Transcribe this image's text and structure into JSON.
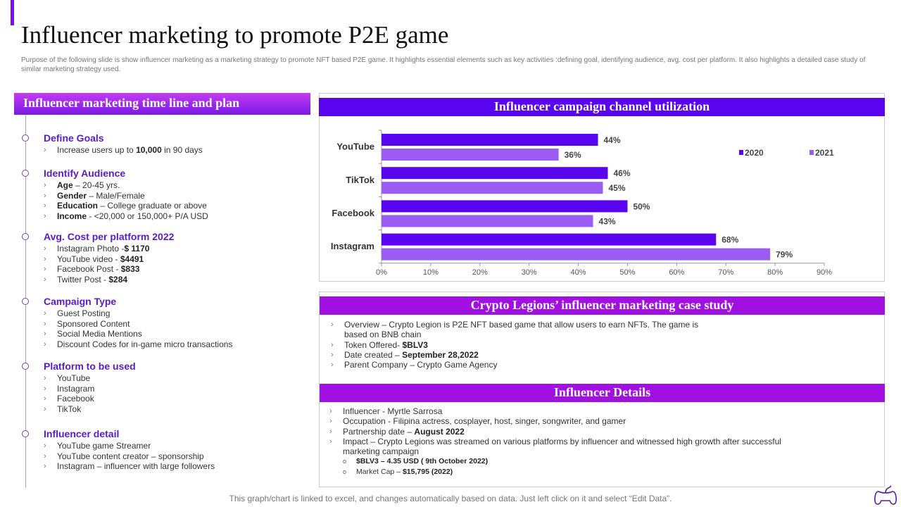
{
  "header": {
    "title": "Influencer marketing to promote P2E game",
    "subtitle": "Purpose of the following slide is show influencer marketing as a marketing strategy to promote NFT based P2E  game.  It highlights essential elements  such as key activities :defining goal,  identifying audience,  avg. cost per platform. It also highlights a detailed  case study of similar marketing strategy used."
  },
  "left": {
    "heading": "Influencer marketing time line and plan",
    "sections": [
      {
        "title": "Define Goals",
        "items": [
          [
            {
              "t": "Increase users up to "
            },
            {
              "t": "10,000",
              "b": true
            },
            {
              "t": " in 90 days"
            }
          ]
        ]
      },
      {
        "title": "Identify Audience",
        "items": [
          [
            {
              "t": "Age",
              "b": true
            },
            {
              "t": " – 20-45 yrs."
            }
          ],
          [
            {
              "t": "Gender",
              "b": true
            },
            {
              "t": " – Male/Female"
            }
          ],
          [
            {
              "t": "Education",
              "b": true
            },
            {
              "t": "  – College graduate or above"
            }
          ],
          [
            {
              "t": "Income",
              "b": true
            },
            {
              "t": " - <20,000 or 150,000+ P/A USD"
            }
          ]
        ]
      },
      {
        "title": "Avg. Cost per platform 2022",
        "items": [
          [
            {
              "t": "Instagram Photo -"
            },
            {
              "t": "$ 1170",
              "b": true
            }
          ],
          [
            {
              "t": "YouTube  video - "
            },
            {
              "t": "$4491",
              "b": true
            }
          ],
          [
            {
              "t": "Facebook Post  -  "
            },
            {
              "t": "$833",
              "b": true
            }
          ],
          [
            {
              "t": "Twitter Post - "
            },
            {
              "t": "$284",
              "b": true
            }
          ]
        ]
      },
      {
        "title": "Campaign Type",
        "items": [
          [
            {
              "t": "Guest Posting"
            }
          ],
          [
            {
              "t": "Sponsored Content"
            }
          ],
          [
            {
              "t": "Social Media Mentions"
            }
          ],
          [
            {
              "t": "Discount Codes for in-game micro transactions"
            }
          ]
        ]
      },
      {
        "title": "Platform to be used",
        "items": [
          [
            {
              "t": "YouTube"
            }
          ],
          [
            {
              "t": "Instagram"
            }
          ],
          [
            {
              "t": "Facebook"
            }
          ],
          [
            {
              "t": "TikTok"
            }
          ]
        ]
      },
      {
        "title": "Influencer detail",
        "items": [
          [
            {
              "t": "YouTube game Streamer"
            }
          ],
          [
            {
              "t": "YouTube content creator – sponsorship"
            }
          ],
          [
            {
              "t": "Instagram – influencer with large followers"
            }
          ]
        ]
      }
    ]
  },
  "chart_heading": "Influencer campaign channel utilization",
  "chart_data": {
    "type": "bar",
    "orientation": "horizontal",
    "categories": [
      "YouTube",
      "TikTok",
      "Facebook",
      "Instagram"
    ],
    "series": [
      {
        "name": "2020",
        "values": [
          44,
          46,
          50,
          68
        ],
        "color": "#5a05f0"
      },
      {
        "name": "2021",
        "values": [
          36,
          45,
          43,
          79
        ],
        "color": "#9b5cf4"
      }
    ],
    "xlim": [
      0,
      90
    ],
    "xticks": [
      "0%",
      "10%",
      "20%",
      "30%",
      "40%",
      "50%",
      "60%",
      "70%",
      "80%",
      "90%"
    ],
    "legend": "top-right",
    "grid": false
  },
  "case_study": {
    "heading": "Crypto Legions’ influencer marketing case study",
    "items": [
      {
        "seg": [
          {
            "t": "Overview – Crypto Legion is P2E NFT based game that allow users to earn NFTs. The game is"
          }
        ],
        "cont": "based on BNB chain"
      },
      {
        "seg": [
          {
            "t": "Token Offered- "
          },
          {
            "t": "$BLV3",
            "b": true
          }
        ]
      },
      {
        "seg": [
          {
            "t": "Date created – "
          },
          {
            "t": "September 28,2022",
            "b": true
          }
        ]
      },
      {
        "seg": [
          {
            "t": "Parent Company – Crypto Game Agency"
          }
        ]
      }
    ]
  },
  "influencer_details": {
    "heading": "Influencer Details",
    "items": [
      {
        "seg": [
          {
            "t": "Influencer - Myrtle  Sarrosa"
          }
        ]
      },
      {
        "seg": [
          {
            "t": "Occupation - Filipina actress, cosplayer, host, singer, songwriter, and gamer"
          }
        ]
      },
      {
        "seg": [
          {
            "t": "Partnership date – "
          },
          {
            "t": "August  2022",
            "b": true
          }
        ]
      },
      {
        "seg": [
          {
            "t": "Impact – Crypto Legions was streamed on various platforms by influencer and witnessed high growth after successful"
          }
        ],
        "cont": "marketing campaign"
      }
    ],
    "subitems": [
      [
        {
          "t": "$BLV3 – 4.35 USD  ( 9th October 2022)",
          "b": true
        }
      ],
      [
        {
          "t": "Market Cap – "
        },
        {
          "t": "$15,795 (2022)",
          "b": true
        }
      ]
    ]
  },
  "footer": "This graph/chart is linked to excel,  and changes automatically based on data. Just left click on it and select “Edit Data”.",
  "colors": {
    "accent": "#7a10e8",
    "chart_header": "#5a05f0",
    "case_header": "#a010e0",
    "heading_text": "#5a1acc"
  },
  "logo_icon": "game-controller-icon"
}
